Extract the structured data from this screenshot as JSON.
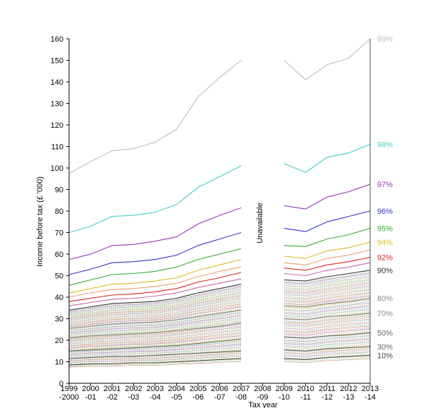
{
  "chart_data": {
    "type": "line",
    "x_ticks": [
      {
        "top": "1999",
        "bottom": "-2000"
      },
      {
        "top": "2000",
        "bottom": "-01"
      },
      {
        "top": "2001",
        "bottom": "-02"
      },
      {
        "top": "2002",
        "bottom": "-03"
      },
      {
        "top": "2003",
        "bottom": "-04"
      },
      {
        "top": "2004",
        "bottom": "-05"
      },
      {
        "top": "2005",
        "bottom": "-06"
      },
      {
        "top": "2006",
        "bottom": "-07"
      },
      {
        "top": "2007",
        "bottom": "-08"
      },
      {
        "top": "2008",
        "bottom": "-09"
      },
      {
        "top": "2009",
        "bottom": "-10"
      },
      {
        "top": "2010",
        "bottom": "-11"
      },
      {
        "top": "2011",
        "bottom": "-12"
      },
      {
        "top": "2012",
        "bottom": "-13"
      },
      {
        "top": "2013",
        "bottom": "-14"
      }
    ],
    "xlabel": "Tax year",
    "ylabel": "Income before tax (£ '000)",
    "ylim": [
      0,
      160
    ],
    "y_ticks": [
      0,
      10,
      20,
      30,
      40,
      50,
      60,
      70,
      80,
      90,
      100,
      110,
      120,
      130,
      140,
      150,
      160
    ],
    "gap_annotation": "Unavailable",
    "series": [
      {
        "name": "99%",
        "color": "#bbbbbb",
        "values": [
          97.5,
          103,
          108,
          109,
          112,
          118,
          133,
          142,
          150,
          null,
          150,
          141,
          148,
          151,
          160
        ]
      },
      {
        "name": "98%",
        "color": "#44cccc",
        "values": [
          70,
          73,
          77.5,
          78,
          79.5,
          83,
          91,
          96,
          101,
          null,
          102,
          98,
          105,
          107,
          111
        ]
      },
      {
        "name": "97%",
        "color": "#9933bb",
        "values": [
          57.5,
          60,
          64,
          64.5,
          66,
          68,
          74,
          78,
          81.5,
          null,
          82.5,
          81,
          86.5,
          89,
          92.5
        ]
      },
      {
        "name": "96%",
        "color": "#3333cc",
        "values": [
          50.5,
          53,
          56,
          56.5,
          57.5,
          59.5,
          64,
          67,
          70,
          null,
          72,
          70.5,
          75,
          77.5,
          80
        ]
      },
      {
        "name": "95%",
        "color": "#33aa33",
        "values": [
          45.5,
          48,
          50.5,
          51,
          52,
          54,
          57.5,
          60,
          62.5,
          null,
          64,
          63.5,
          67,
          69,
          72
        ]
      },
      {
        "name": "94%",
        "color": "#ddbb22",
        "values": [
          42,
          44,
          46,
          46.5,
          47.5,
          49,
          52.5,
          55,
          57.5,
          null,
          59,
          58,
          61.5,
          63,
          65.5
        ]
      },
      {
        "name": "",
        "color": "#e8a070",
        "values": [
          40,
          42,
          43.5,
          44,
          45,
          46.5,
          49.5,
          52,
          54,
          null,
          56,
          55,
          58,
          59.5,
          62
        ]
      },
      {
        "name": "92%",
        "color": "#dd2222",
        "values": [
          38,
          39.5,
          41,
          41.5,
          42.5,
          44,
          47,
          49,
          51.5,
          null,
          53.5,
          52.5,
          55,
          56.5,
          58.5
        ]
      },
      {
        "name": "",
        "color": "#cc66aa",
        "values": [
          36,
          37.5,
          39,
          39.5,
          40.5,
          42,
          44.5,
          46.5,
          48.5,
          null,
          51,
          50,
          52.5,
          54,
          56
        ]
      },
      {
        "name": "90%",
        "color": "#333333",
        "values": [
          34,
          35.5,
          37,
          37.5,
          38,
          39.5,
          42,
          44,
          46,
          null,
          48,
          47.5,
          49.5,
          51,
          52.5
        ]
      },
      {
        "name": "80%",
        "color": "#888888",
        "values": [
          25.5,
          26.5,
          27.5,
          28,
          28.5,
          29.5,
          31,
          32.5,
          34,
          null,
          36,
          35.5,
          37,
          38,
          39.5
        ]
      },
      {
        "name": "70%",
        "color": "#888888",
        "values": [
          21,
          22,
          22.5,
          23,
          23.5,
          24.5,
          25.5,
          26.5,
          28,
          null,
          30,
          29.5,
          31,
          31.5,
          32.5
        ]
      },
      {
        "name": "50%",
        "color": "#666666",
        "values": [
          15,
          15.5,
          16,
          16.5,
          17,
          17.5,
          18.5,
          19.5,
          20.5,
          null,
          21.5,
          21,
          22,
          22.5,
          23.5
        ]
      },
      {
        "name": "30%",
        "color": "#666666",
        "values": [
          11.5,
          12,
          12.5,
          12.5,
          13,
          13.5,
          14,
          14.5,
          15,
          null,
          15.5,
          15,
          16,
          16.5,
          17
        ]
      },
      {
        "name": "10%",
        "color": "#444444",
        "values": [
          8.5,
          9,
          9,
          9.5,
          9.5,
          10,
          10.5,
          11,
          11.5,
          null,
          11.5,
          11,
          12,
          12.5,
          13
        ]
      }
    ]
  }
}
